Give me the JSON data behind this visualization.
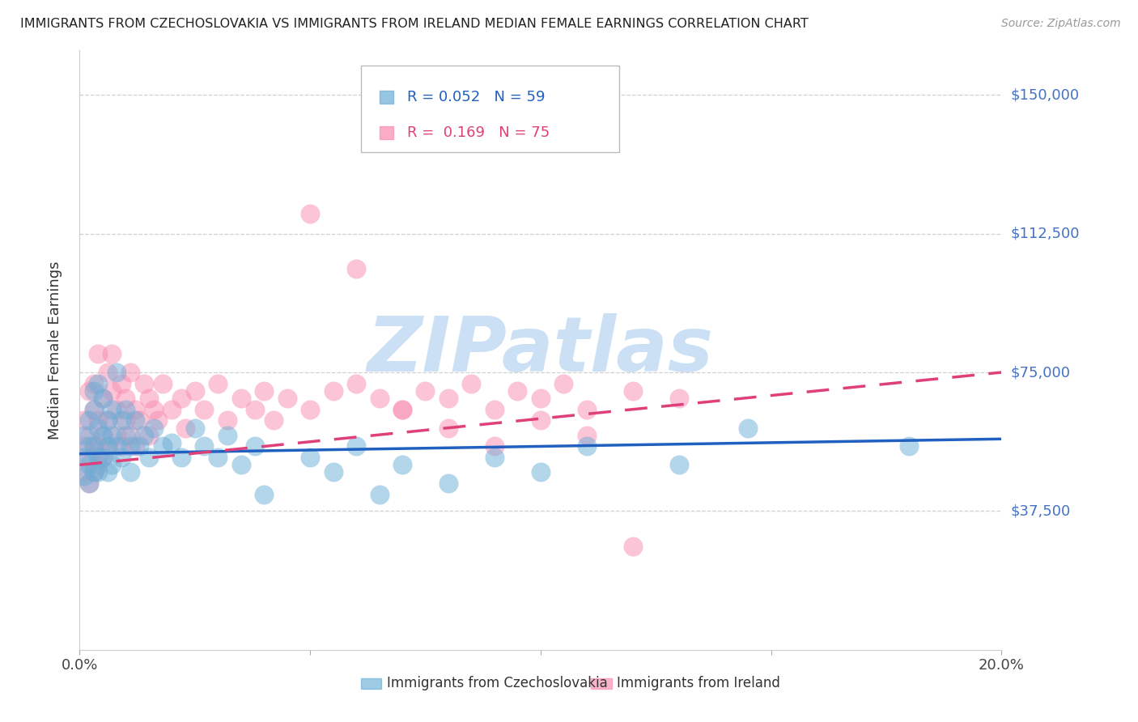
{
  "title": "IMMIGRANTS FROM CZECHOSLOVAKIA VS IMMIGRANTS FROM IRELAND MEDIAN FEMALE EARNINGS CORRELATION CHART",
  "source": "Source: ZipAtlas.com",
  "ylabel": "Median Female Earnings",
  "ytick_labels": [
    "$37,500",
    "$75,000",
    "$112,500",
    "$150,000"
  ],
  "ytick_values": [
    37500,
    75000,
    112500,
    150000
  ],
  "ymin": 0,
  "ymax": 162000,
  "xmin": 0.0,
  "xmax": 0.2,
  "r_czech": 0.052,
  "n_czech": 59,
  "r_ireland": 0.169,
  "n_ireland": 75,
  "color_czech": "#6baed6",
  "color_ireland": "#f98bb0",
  "color_czech_line": "#2060c0",
  "color_ireland_line": "#e0407a",
  "color_axis_labels": "#4472c4",
  "legend_label_czech": "Immigrants from Czechoslovakia",
  "legend_label_ireland": "Immigrants from Ireland",
  "watermark": "ZIPatlas",
  "watermark_color": "#cce0f5",
  "czech_x": [
    0.001,
    0.001,
    0.001,
    0.002,
    0.002,
    0.002,
    0.002,
    0.003,
    0.003,
    0.003,
    0.003,
    0.004,
    0.004,
    0.004,
    0.004,
    0.005,
    0.005,
    0.005,
    0.006,
    0.006,
    0.006,
    0.007,
    0.007,
    0.007,
    0.008,
    0.008,
    0.009,
    0.009,
    0.01,
    0.01,
    0.011,
    0.011,
    0.012,
    0.013,
    0.014,
    0.015,
    0.016,
    0.018,
    0.02,
    0.022,
    0.025,
    0.027,
    0.03,
    0.032,
    0.035,
    0.038,
    0.04,
    0.05,
    0.055,
    0.06,
    0.065,
    0.07,
    0.08,
    0.09,
    0.1,
    0.11,
    0.13,
    0.145,
    0.18
  ],
  "czech_y": [
    52000,
    58000,
    47000,
    62000,
    55000,
    50000,
    45000,
    65000,
    70000,
    55000,
    48000,
    72000,
    60000,
    52000,
    48000,
    68000,
    58000,
    52000,
    62000,
    55000,
    48000,
    65000,
    58000,
    50000,
    75000,
    55000,
    62000,
    52000,
    58000,
    65000,
    55000,
    48000,
    62000,
    55000,
    58000,
    52000,
    60000,
    55000,
    56000,
    52000,
    60000,
    55000,
    52000,
    58000,
    50000,
    55000,
    42000,
    52000,
    48000,
    55000,
    42000,
    50000,
    45000,
    52000,
    48000,
    55000,
    50000,
    60000,
    55000
  ],
  "ireland_x": [
    0.001,
    0.001,
    0.001,
    0.002,
    0.002,
    0.002,
    0.002,
    0.003,
    0.003,
    0.003,
    0.003,
    0.004,
    0.004,
    0.004,
    0.004,
    0.005,
    0.005,
    0.005,
    0.006,
    0.006,
    0.006,
    0.007,
    0.007,
    0.008,
    0.008,
    0.009,
    0.009,
    0.01,
    0.01,
    0.011,
    0.011,
    0.012,
    0.012,
    0.013,
    0.014,
    0.015,
    0.015,
    0.016,
    0.017,
    0.018,
    0.02,
    0.022,
    0.023,
    0.025,
    0.027,
    0.03,
    0.032,
    0.035,
    0.038,
    0.04,
    0.042,
    0.045,
    0.05,
    0.055,
    0.06,
    0.065,
    0.07,
    0.075,
    0.08,
    0.085,
    0.09,
    0.095,
    0.1,
    0.105,
    0.11,
    0.12,
    0.13,
    0.05,
    0.06,
    0.07,
    0.08,
    0.09,
    0.1,
    0.11,
    0.12
  ],
  "ireland_y": [
    55000,
    62000,
    48000,
    58000,
    70000,
    52000,
    45000,
    65000,
    55000,
    72000,
    48000,
    80000,
    62000,
    55000,
    50000,
    68000,
    58000,
    52000,
    75000,
    62000,
    55000,
    70000,
    80000,
    65000,
    58000,
    72000,
    55000,
    62000,
    68000,
    75000,
    58000,
    65000,
    55000,
    62000,
    72000,
    68000,
    58000,
    65000,
    62000,
    72000,
    65000,
    68000,
    60000,
    70000,
    65000,
    72000,
    62000,
    68000,
    65000,
    70000,
    62000,
    68000,
    65000,
    70000,
    72000,
    68000,
    65000,
    70000,
    68000,
    72000,
    65000,
    70000,
    68000,
    72000,
    65000,
    70000,
    68000,
    118000,
    103000,
    65000,
    60000,
    55000,
    62000,
    58000,
    28000
  ]
}
